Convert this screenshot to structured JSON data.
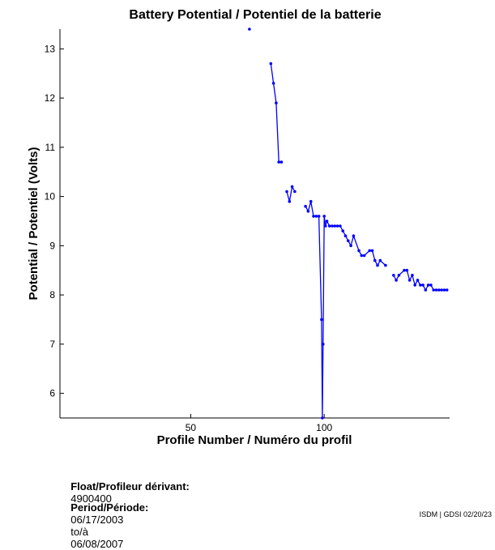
{
  "chart_data": {
    "type": "line",
    "title": "Battery Potential / Potentiel de la batterie",
    "xlabel": "Profile Number / Numéro du profil",
    "ylabel": "Potential / Potentiel (Volts)",
    "xlim": [
      1,
      147
    ],
    "ylim": [
      5.5,
      13.4
    ],
    "xticks": [
      50,
      100
    ],
    "yticks": [
      6,
      7,
      8,
      9,
      10,
      11,
      12,
      13
    ],
    "grid": false,
    "line_color": "#0000ff",
    "series": [
      {
        "x": [
          72,
          80,
          81,
          82,
          83,
          84,
          86,
          87,
          88,
          89,
          93,
          94,
          95,
          96,
          97,
          98,
          99,
          99.3,
          99.6,
          100,
          100.5,
          101,
          102,
          103,
          104,
          105,
          106,
          107,
          108,
          109,
          110,
          111,
          113,
          114,
          115,
          117,
          118,
          119,
          120,
          121,
          123,
          126,
          127,
          128,
          130,
          131,
          132,
          133,
          134,
          135,
          136,
          137,
          138,
          139,
          140,
          141,
          142,
          143,
          144,
          145,
          146
        ],
        "y": [
          13.4,
          12.7,
          12.3,
          11.9,
          10.7,
          10.7,
          10.1,
          9.9,
          10.2,
          10.1,
          9.8,
          9.7,
          9.9,
          9.6,
          9.6,
          9.6,
          7.5,
          5.5,
          7.0,
          9.6,
          9.4,
          9.5,
          9.4,
          9.4,
          9.4,
          9.4,
          9.4,
          9.3,
          9.2,
          9.1,
          9.0,
          9.2,
          8.9,
          8.8,
          8.8,
          8.9,
          8.9,
          8.7,
          8.6,
          8.7,
          8.6,
          8.4,
          8.3,
          8.4,
          8.5,
          8.5,
          8.3,
          8.4,
          8.2,
          8.3,
          8.2,
          8.2,
          8.1,
          8.2,
          8.2,
          8.1,
          8.1,
          8.1,
          8.1,
          8.1,
          8.1
        ],
        "segments": [
          [
            0,
            1
          ],
          [
            1,
            6
          ],
          [
            6,
            10
          ],
          [
            10,
            41
          ],
          [
            41,
            61
          ]
        ]
      }
    ]
  },
  "info": {
    "float_label": "Float/Profileur dérivant:",
    "float_value": "4900400",
    "period_label": "Period/Période:",
    "period_start": "06/17/2003",
    "period_sep": "to/à",
    "period_end": "06/08/2007"
  },
  "credit": "ISDM | GDSI 02/20/23"
}
